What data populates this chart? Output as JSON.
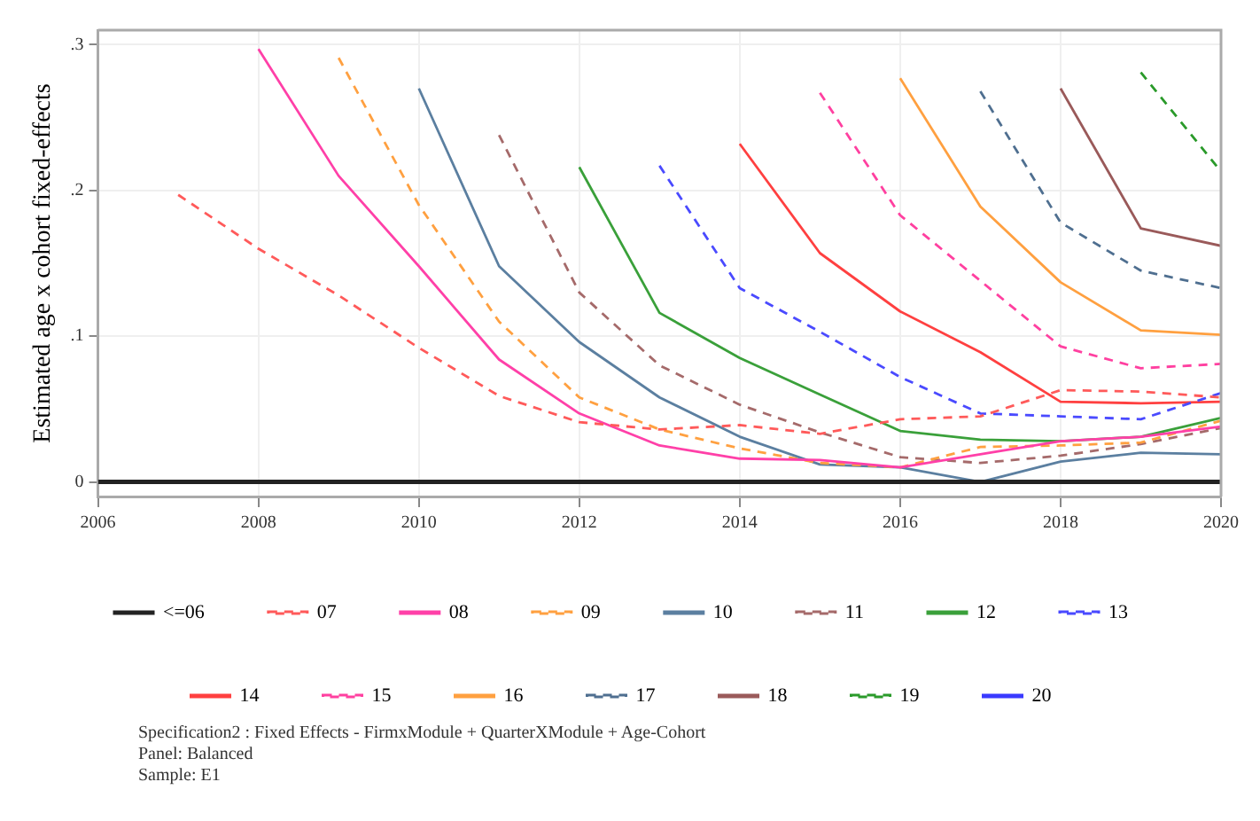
{
  "chart_data": {
    "type": "line",
    "ylabel": "Estimated age x cohort fixed-effects",
    "x": [
      2006,
      2007,
      2008,
      2009,
      2010,
      2011,
      2012,
      2013,
      2014,
      2015,
      2016,
      2017,
      2018,
      2019,
      2020
    ],
    "xlim": [
      2006,
      2020
    ],
    "xticks": [
      2006,
      2008,
      2010,
      2012,
      2014,
      2016,
      2018,
      2020
    ],
    "ylim": [
      -0.01,
      0.31
    ],
    "yticks": [
      {
        "value": 0,
        "label": "0"
      },
      {
        "value": 0.1,
        "label": ".1"
      },
      {
        "value": 0.2,
        "label": ".2"
      },
      {
        "value": 0.3,
        "label": ".3"
      }
    ],
    "grid": true,
    "legend": "bottom",
    "marker": "none",
    "series": [
      {
        "name": "<=06",
        "color": "#222222",
        "line_style": "solid",
        "values": [
          0,
          0,
          0,
          0,
          0,
          0,
          0,
          0,
          0,
          0,
          0,
          0,
          0,
          0,
          0
        ]
      },
      {
        "name": "07",
        "color": "#ff5a5a",
        "line_style": "dashed",
        "values": [
          null,
          0.197,
          0.16,
          0.128,
          0.092,
          0.059,
          0.041,
          0.036,
          0.039,
          0.033,
          0.043,
          0.045,
          0.063,
          0.062,
          0.058
        ]
      },
      {
        "name": "08",
        "color": "#ff40a8",
        "line_style": "solid",
        "values": [
          null,
          null,
          0.297,
          0.21,
          0.148,
          0.084,
          0.047,
          0.025,
          0.016,
          0.015,
          0.01,
          0.019,
          0.028,
          0.031,
          0.038
        ]
      },
      {
        "name": "09",
        "color": "#ffa040",
        "line_style": "dashed",
        "values": [
          null,
          null,
          null,
          0.291,
          0.19,
          0.11,
          0.058,
          0.036,
          0.023,
          0.013,
          0.01,
          0.024,
          0.025,
          0.027,
          0.042
        ]
      },
      {
        "name": "10",
        "color": "#5b7fa0",
        "line_style": "solid",
        "values": [
          null,
          null,
          null,
          null,
          0.27,
          0.148,
          0.096,
          0.058,
          0.031,
          0.012,
          0.01,
          0.0,
          0.014,
          0.02,
          0.019
        ]
      },
      {
        "name": "11",
        "color": "#a56a6a",
        "line_style": "dashed",
        "values": [
          null,
          null,
          null,
          null,
          null,
          0.238,
          0.13,
          0.08,
          0.053,
          0.034,
          0.017,
          0.013,
          0.018,
          0.026,
          0.037
        ]
      },
      {
        "name": "12",
        "color": "#3aa03a",
        "line_style": "solid",
        "values": [
          null,
          null,
          null,
          null,
          null,
          null,
          0.216,
          0.116,
          0.085,
          0.06,
          0.035,
          0.029,
          0.028,
          0.031,
          0.044
        ]
      },
      {
        "name": "13",
        "color": "#4a4aff",
        "line_style": "dashed",
        "values": [
          null,
          null,
          null,
          null,
          null,
          null,
          null,
          0.217,
          0.133,
          0.103,
          0.072,
          0.047,
          0.045,
          0.043,
          0.061
        ]
      },
      {
        "name": "14",
        "color": "#ff4040",
        "line_style": "solid",
        "values": [
          null,
          null,
          null,
          null,
          null,
          null,
          null,
          null,
          0.232,
          0.157,
          0.117,
          0.089,
          0.055,
          0.054,
          0.055
        ]
      },
      {
        "name": "15",
        "color": "#ff40a0",
        "line_style": "dashed",
        "values": [
          null,
          null,
          null,
          null,
          null,
          null,
          null,
          null,
          null,
          0.267,
          0.183,
          0.138,
          0.093,
          0.078,
          0.081
        ]
      },
      {
        "name": "16",
        "color": "#ffa040",
        "line_style": "solid",
        "values": [
          null,
          null,
          null,
          null,
          null,
          null,
          null,
          null,
          null,
          null,
          0.277,
          0.189,
          0.137,
          0.104,
          0.101
        ]
      },
      {
        "name": "17",
        "color": "#4f6f90",
        "line_style": "dashed",
        "values": [
          null,
          null,
          null,
          null,
          null,
          null,
          null,
          null,
          null,
          null,
          null,
          0.268,
          0.178,
          0.145,
          0.133
        ]
      },
      {
        "name": "18",
        "color": "#9a5a5a",
        "line_style": "solid",
        "values": [
          null,
          null,
          null,
          null,
          null,
          null,
          null,
          null,
          null,
          null,
          null,
          null,
          0.27,
          0.174,
          0.162
        ]
      },
      {
        "name": "19",
        "color": "#2a9a2a",
        "line_style": "dashed",
        "values": [
          null,
          null,
          null,
          null,
          null,
          null,
          null,
          null,
          null,
          null,
          null,
          null,
          null,
          0.281,
          0.213
        ]
      },
      {
        "name": "20",
        "color": "#3a3aff",
        "line_style": "solid",
        "values": [
          null,
          null,
          null,
          null,
          null,
          null,
          null,
          null,
          null,
          null,
          null,
          null,
          null,
          null,
          null
        ]
      }
    ],
    "annotations": [
      "Specification2 : Fixed Effects - FirmxModule + QuarterXModule + Age-Cohort",
      "Panel: Balanced",
      "Sample: E1"
    ]
  }
}
